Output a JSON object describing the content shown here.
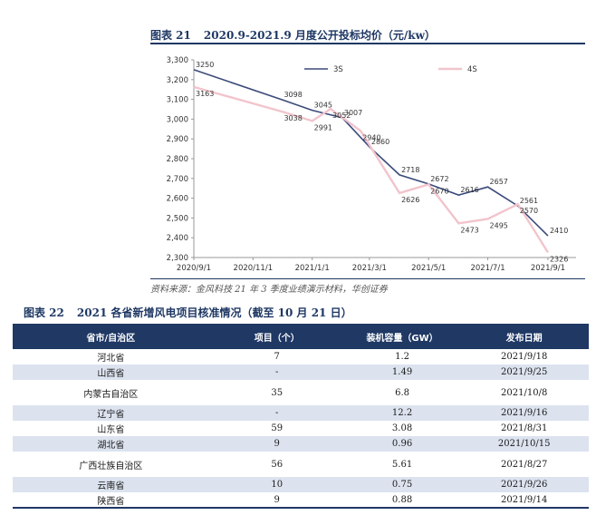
{
  "figure21": {
    "number": "图表 21",
    "title": "2020.9-2021.9 月度公开投标均价（元/kw）",
    "source": "资料来源：金风科技 21 年 3 季度业绩演示材料，华创证券"
  },
  "chart_data": {
    "type": "line",
    "title": "2020.9-2021.9 月度公开投标均价（元/kw）",
    "xlabel": "",
    "ylabel": "",
    "x_ticks": [
      "2020/9/1",
      "2020/11/1",
      "2021/1/1",
      "2021/3/1",
      "2021/5/1",
      "2021/7/1",
      "2021/9/1"
    ],
    "y_ticks": [
      "2,300",
      "2,400",
      "2,500",
      "2,600",
      "2,700",
      "2,800",
      "2,900",
      "3,000",
      "3,100",
      "3,200",
      "3,300"
    ],
    "ylim": [
      2300,
      3300
    ],
    "xlim": [
      "2020-09-01",
      "2021-09-30"
    ],
    "legend_position": "top",
    "grid": false,
    "series": [
      {
        "name": "3S",
        "color": "#3b4a7a",
        "points": [
          {
            "x": "2020-09-01",
            "y": 3250,
            "label": "3250"
          },
          {
            "x": "2020-12-01",
            "y": 3098,
            "label": "3098"
          },
          {
            "x": "2021-01-01",
            "y": 3045,
            "label": "3045"
          },
          {
            "x": "2021-02-01",
            "y": 3007,
            "label": "3007"
          },
          {
            "x": "2021-03-01",
            "y": 2860,
            "label": "2860"
          },
          {
            "x": "2021-04-01",
            "y": 2718,
            "label": "2718"
          },
          {
            "x": "2021-05-01",
            "y": 2672,
            "label": "2672"
          },
          {
            "x": "2021-06-01",
            "y": 2616,
            "label": "2616"
          },
          {
            "x": "2021-07-01",
            "y": 2657,
            "label": "2657"
          },
          {
            "x": "2021-08-01",
            "y": 2561,
            "label": "2561"
          },
          {
            "x": "2021-09-01",
            "y": 2410,
            "label": "2410"
          }
        ]
      },
      {
        "name": "4S",
        "color": "#f2c4cc",
        "points": [
          {
            "x": "2020-09-01",
            "y": 3163,
            "label": "3163"
          },
          {
            "x": "2020-12-01",
            "y": 3038,
            "label": "3038"
          },
          {
            "x": "2021-01-01",
            "y": 2991,
            "label": "2991"
          },
          {
            "x": "2021-01-20",
            "y": 3052,
            "label": "3052"
          },
          {
            "x": "2021-02-20",
            "y": 2940,
            "label": "2940"
          },
          {
            "x": "2021-04-01",
            "y": 2626,
            "label": "2626"
          },
          {
            "x": "2021-05-01",
            "y": 2670,
            "label": "2670"
          },
          {
            "x": "2021-06-01",
            "y": 2473,
            "label": "2473"
          },
          {
            "x": "2021-07-01",
            "y": 2495,
            "label": "2495"
          },
          {
            "x": "2021-08-01",
            "y": 2570,
            "label": "2570"
          },
          {
            "x": "2021-09-01",
            "y": 2326,
            "label": "2326"
          }
        ]
      }
    ]
  },
  "figure22": {
    "number": "图表 22",
    "title": "2021 各省新增风电项目核准情况（截至 10 月 21 日）",
    "columns": [
      "省市/自治区",
      "项目（个）",
      "装机容量（GW）",
      "发布日期"
    ],
    "rows": [
      {
        "region": "河北省",
        "projects": "7",
        "capacity": "1.2",
        "date": "2021/9/18",
        "tall": false
      },
      {
        "region": "山西省",
        "projects": "-",
        "capacity": "1.49",
        "date": "2021/9/25",
        "tall": false
      },
      {
        "region": "内蒙古自治区",
        "projects": "35",
        "capacity": "6.8",
        "date": "2021/10/8",
        "tall": true
      },
      {
        "region": "辽宁省",
        "projects": "-",
        "capacity": "12.2",
        "date": "2021/9/16",
        "tall": false
      },
      {
        "region": "山东省",
        "projects": "59",
        "capacity": "3.08",
        "date": "2021/8/31",
        "tall": false
      },
      {
        "region": "湖北省",
        "projects": "9",
        "capacity": "0.96",
        "date": "2021/10/15",
        "tall": false
      },
      {
        "region": "广西壮族自治区",
        "projects": "56",
        "capacity": "5.61",
        "date": "2021/8/27",
        "tall": true
      },
      {
        "region": "云南省",
        "projects": "10",
        "capacity": "0.75",
        "date": "2021/9/26",
        "tall": false
      },
      {
        "region": "陕西省",
        "projects": "9",
        "capacity": "0.88",
        "date": "2021/9/14",
        "tall": false
      }
    ]
  }
}
